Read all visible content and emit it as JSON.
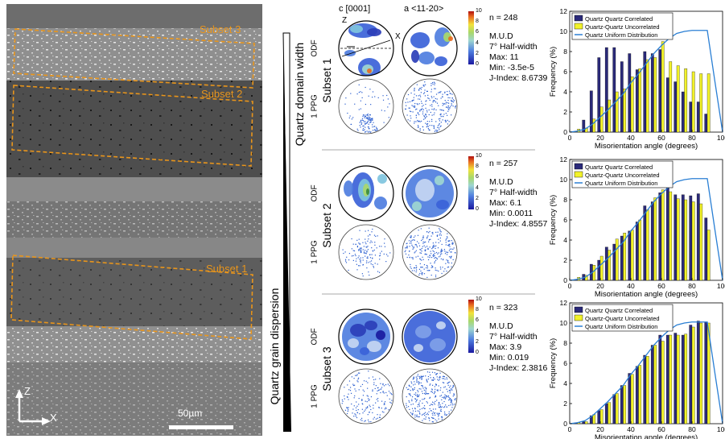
{
  "micrograph": {
    "subset_labels": [
      "Subset 3",
      "Subset 2",
      "Subset 1"
    ],
    "scale_label": "50µm",
    "axis_z": "Z",
    "axis_x": "X"
  },
  "wedges": {
    "domain_width_label": "Quartz domain width",
    "grain_dispersion_label": "Quartz grain dispersion"
  },
  "pole_figures": {
    "c_axis_label": "c [0001]",
    "a_axis_label": "a <11-20>",
    "z_label": "Z",
    "x_label": "X",
    "odf_label": "ODF",
    "ppg_label": "1 PPG",
    "colorbar_ticks": [
      "10",
      "8",
      "6",
      "4",
      "2",
      "0"
    ],
    "subsets": [
      {
        "name": "Subset 1",
        "n": "n = 248",
        "mud": "M.U.D",
        "halfwidth": "7° Half-width",
        "max": "Max: 11",
        "min": "Min: -3.5e-5",
        "jindex": "J-Index: 8.6739"
      },
      {
        "name": "Subset 2",
        "n": "n = 257",
        "mud": "M.U.D",
        "halfwidth": "7° Half-width",
        "max": "Max: 6.1",
        "min": "Min: 0.0011",
        "jindex": "J-Index: 4.8557"
      },
      {
        "name": "Subset 3",
        "n": "n = 323",
        "mud": "M.U.D",
        "halfwidth": "7° Half-width",
        "max": "Max: 3.9",
        "min": "Min: 0.019",
        "jindex": "J-Index: 2.3816"
      }
    ]
  },
  "colors": {
    "correlated": "#2b2a7a",
    "uncorrelated": "#f2f22a",
    "uniform": "#2a7fd4",
    "subset_box": "#e8951c"
  },
  "chart_data": [
    {
      "type": "bar",
      "xlabel": "Misorientation angle (degrees)",
      "ylabel": "Frequency (%)",
      "xlim": [
        0,
        100
      ],
      "ylim": [
        0,
        12
      ],
      "xticks": [
        "0",
        "20",
        "40",
        "60",
        "80",
        "100"
      ],
      "yticks": [
        "0",
        "2",
        "4",
        "6",
        "8",
        "10",
        "12"
      ],
      "legend_position": "top-left",
      "x": [
        5,
        10,
        15,
        20,
        25,
        30,
        35,
        40,
        45,
        50,
        55,
        60,
        65,
        70,
        75,
        80,
        85,
        90,
        95,
        100
      ],
      "series": [
        {
          "name": "Quartz Quartz Correlated",
          "values": [
            0,
            1.2,
            4.1,
            7.4,
            8.4,
            8.4,
            7.0,
            7.8,
            6.2,
            8.0,
            7.8,
            8.2,
            5.4,
            5.0,
            4.0,
            3.0,
            3.0,
            1.8,
            0,
            0
          ]
        },
        {
          "name": "Quartz-Quartz Uncorrelated",
          "values": [
            0.3,
            0.4,
            1.3,
            2.5,
            3.2,
            4.0,
            4.3,
            5.5,
            6.3,
            7.2,
            7.4,
            9.0,
            7.0,
            6.6,
            6.3,
            6.0,
            5.8,
            5.8,
            0,
            0
          ]
        },
        {
          "name": "Quartz Uniform Distribution",
          "values": [
            0.1,
            0.3,
            0.8,
            1.5,
            2.2,
            3.0,
            3.8,
            4.9,
            5.8,
            6.8,
            7.8,
            8.6,
            9.3,
            9.8,
            10.0,
            10.1,
            10.1,
            10.1,
            5.0,
            0
          ]
        }
      ]
    },
    {
      "type": "bar",
      "xlabel": "Misorientation angle (degrees)",
      "ylabel": "Frequency (%)",
      "xlim": [
        0,
        100
      ],
      "ylim": [
        0,
        12
      ],
      "xticks": [
        "0",
        "20",
        "40",
        "60",
        "80",
        "100"
      ],
      "yticks": [
        "0",
        "2",
        "4",
        "6",
        "8",
        "10",
        "12"
      ],
      "legend_position": "top-left",
      "x": [
        5,
        10,
        15,
        20,
        25,
        30,
        35,
        40,
        45,
        50,
        55,
        60,
        65,
        70,
        75,
        80,
        85,
        90,
        95,
        100
      ],
      "series": [
        {
          "name": "Quartz Quartz Correlated",
          "values": [
            0.1,
            0.6,
            1.6,
            2.0,
            3.3,
            3.6,
            4.4,
            4.9,
            5.8,
            7.4,
            7.8,
            8.7,
            9.5,
            8.5,
            8.5,
            8.4,
            8.6,
            6.2,
            0,
            0
          ]
        },
        {
          "name": "Quartz-Quartz Uncorrelated",
          "values": [
            0.3,
            0.5,
            1.5,
            2.4,
            3.0,
            4.1,
            4.7,
            5.0,
            6.0,
            7.0,
            8.2,
            9.0,
            8.8,
            8.1,
            8.0,
            7.8,
            7.6,
            5.0,
            0,
            0
          ]
        },
        {
          "name": "Quartz Uniform Distribution",
          "values": [
            0.1,
            0.3,
            0.8,
            1.5,
            2.2,
            3.0,
            3.8,
            4.9,
            5.8,
            6.8,
            7.8,
            8.6,
            9.3,
            9.8,
            10.0,
            10.1,
            10.1,
            10.1,
            5.0,
            0
          ]
        }
      ]
    },
    {
      "type": "bar",
      "xlabel": "Misorientation angle (degrees)",
      "ylabel": "Frequency (%)",
      "xlim": [
        0,
        100
      ],
      "ylim": [
        0,
        12
      ],
      "xticks": [
        "0",
        "20",
        "40",
        "60",
        "80",
        "100"
      ],
      "yticks": [
        "0",
        "2",
        "4",
        "6",
        "8",
        "10",
        "12"
      ],
      "legend_position": "top-left",
      "x": [
        5,
        10,
        15,
        20,
        25,
        30,
        35,
        40,
        45,
        50,
        55,
        60,
        65,
        70,
        75,
        80,
        85,
        90,
        95,
        100
      ],
      "series": [
        {
          "name": "Quartz Quartz Correlated",
          "values": [
            0.1,
            0.2,
            0.8,
            1.3,
            2.0,
            2.9,
            3.8,
            5.0,
            5.7,
            6.8,
            7.8,
            8.8,
            8.8,
            9.0,
            8.8,
            9.8,
            10.2,
            10.1,
            0,
            0
          ]
        },
        {
          "name": "Quartz-Quartz Uncorrelated",
          "values": [
            0.1,
            0.2,
            0.9,
            1.4,
            2.1,
            3.0,
            3.8,
            4.9,
            5.8,
            6.7,
            7.8,
            8.2,
            8.8,
            8.8,
            8.9,
            9.6,
            10.0,
            10.0,
            0,
            0
          ]
        },
        {
          "name": "Quartz Uniform Distribution",
          "values": [
            0.1,
            0.3,
            0.8,
            1.5,
            2.2,
            3.0,
            3.8,
            4.9,
            5.8,
            6.8,
            7.8,
            8.6,
            9.3,
            9.8,
            10.0,
            10.1,
            10.1,
            10.1,
            5.0,
            0
          ]
        }
      ]
    }
  ]
}
